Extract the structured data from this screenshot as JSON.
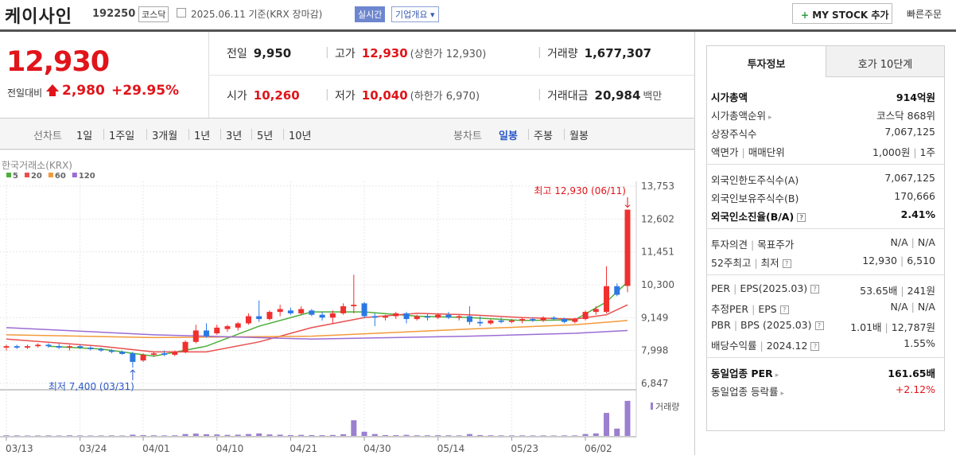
{
  "header": {
    "name": "케이사인",
    "code": "192250",
    "market": "코스닥",
    "date": "2025.06.11 기준(KRX 장마감)",
    "realtime": "실시간",
    "overview": "기업개요",
    "mystock": "MY STOCK 추가",
    "order": "빠른주문"
  },
  "quote": {
    "price": "12,930",
    "change_label": "전일대비",
    "change": "2,980",
    "rate": "+29.95%",
    "rows": [
      [
        {
          "label": "전일",
          "value": "9,950"
        },
        {
          "label": "고가",
          "value": "12,930",
          "note": "(상한가 12,930)",
          "red": true
        },
        {
          "label": "거래량",
          "value": "1,677,307"
        }
      ],
      [
        {
          "label": "시가",
          "value": "10,260",
          "red": true
        },
        {
          "label": "저가",
          "value": "10,040",
          "note": "(하한가 6,970)",
          "red": true
        },
        {
          "label": "거래대금",
          "value": "20,984",
          "note": "백만"
        }
      ]
    ]
  },
  "periods": {
    "line_label": "선차트",
    "line": [
      "1일",
      "1주일",
      "3개월",
      "1년",
      "3년",
      "5년",
      "10년"
    ],
    "candle_label": "봉차트",
    "candle": [
      "일봉",
      "주봉",
      "월봉"
    ],
    "selected": "일봉"
  },
  "chart": {
    "type": "candlestick",
    "source": "한국거래소(KRX)",
    "up_color": "#f0302f",
    "down_color": "#2b78e4",
    "grid": true,
    "ylim": [
      6847,
      13753
    ],
    "yticks": [
      {
        "value": 6847,
        "label": "6,847"
      },
      {
        "value": 7998,
        "label": "7,998"
      },
      {
        "value": 9149,
        "label": "9,149"
      },
      {
        "value": 10300,
        "label": "10,300"
      },
      {
        "value": 11451,
        "label": "11,451"
      },
      {
        "value": 12602,
        "label": "12,602"
      },
      {
        "value": 13753,
        "label": "13,753"
      }
    ],
    "categories": [
      "03/13",
      null,
      null,
      null,
      null,
      null,
      null,
      "03/24",
      null,
      null,
      null,
      null,
      null,
      "04/01",
      null,
      null,
      null,
      null,
      null,
      null,
      "04/10",
      null,
      null,
      null,
      null,
      null,
      null,
      "04/21",
      null,
      null,
      null,
      null,
      null,
      null,
      "04/30",
      null,
      null,
      null,
      null,
      null,
      null,
      "05/14",
      null,
      null,
      null,
      null,
      null,
      null,
      "05/23",
      null,
      null,
      null,
      null,
      null,
      null,
      "06/02",
      null,
      null,
      null,
      null,
      null
    ],
    "ohlc": [
      [
        8100,
        8200,
        8000,
        8150
      ],
      [
        8150,
        8200,
        8050,
        8100
      ],
      [
        8100,
        8200,
        8050,
        8150
      ],
      [
        8150,
        8250,
        8100,
        8200
      ],
      [
        8200,
        8250,
        8100,
        8150
      ],
      [
        8150,
        8250,
        8050,
        8100
      ],
      [
        8100,
        8200,
        8000,
        8150
      ],
      [
        8150,
        8200,
        8050,
        8100
      ],
      [
        8100,
        8150,
        8000,
        8050
      ],
      [
        8050,
        8100,
        7950,
        8000
      ],
      [
        8000,
        8050,
        7900,
        7950
      ],
      [
        7950,
        8000,
        7850,
        7880
      ],
      [
        7900,
        7950,
        7400,
        7600
      ],
      [
        7650,
        7900,
        7600,
        7850
      ],
      [
        7850,
        7950,
        7780,
        7900
      ],
      [
        7900,
        8000,
        7800,
        7850
      ],
      [
        7850,
        8000,
        7800,
        7950
      ],
      [
        7950,
        8350,
        7900,
        8300
      ],
      [
        8300,
        8900,
        8250,
        8700
      ],
      [
        8700,
        8950,
        8450,
        8500
      ],
      [
        8600,
        8900,
        8550,
        8800
      ],
      [
        8750,
        8900,
        8650,
        8850
      ],
      [
        8800,
        9000,
        8700,
        8950
      ],
      [
        8950,
        9300,
        8900,
        9200
      ],
      [
        9200,
        9750,
        9000,
        9100
      ],
      [
        9100,
        9400,
        9050,
        9350
      ],
      [
        9350,
        9600,
        9200,
        9450
      ],
      [
        9400,
        9500,
        9250,
        9300
      ],
      [
        9300,
        9550,
        9250,
        9450
      ],
      [
        9400,
        9450,
        9200,
        9250
      ],
      [
        9250,
        9350,
        9050,
        9150
      ],
      [
        9150,
        9400,
        8950,
        9300
      ],
      [
        9300,
        9650,
        9250,
        9550
      ],
      [
        9550,
        10650,
        9300,
        9600
      ],
      [
        9650,
        9700,
        9150,
        9200
      ],
      [
        9200,
        9300,
        8850,
        9150
      ],
      [
        9150,
        9250,
        9050,
        9200
      ],
      [
        9200,
        9350,
        9100,
        9300
      ],
      [
        9300,
        9350,
        8950,
        9100
      ],
      [
        9100,
        9250,
        9050,
        9200
      ],
      [
        9200,
        9300,
        9050,
        9150
      ],
      [
        9150,
        9300,
        9100,
        9250
      ],
      [
        9250,
        9350,
        9100,
        9150
      ],
      [
        9150,
        9250,
        9050,
        9200
      ],
      [
        9200,
        9550,
        8900,
        9000
      ],
      [
        9000,
        9200,
        8850,
        8950
      ],
      [
        8950,
        9100,
        8900,
        9050
      ],
      [
        9050,
        9150,
        8950,
        9000
      ],
      [
        9000,
        9100,
        8950,
        9050
      ],
      [
        9050,
        9150,
        8950,
        9100
      ],
      [
        9100,
        9150,
        9000,
        9050
      ],
      [
        9050,
        9200,
        9000,
        9150
      ],
      [
        9150,
        9200,
        9050,
        9100
      ],
      [
        9100,
        9150,
        8950,
        9000
      ],
      [
        9000,
        9150,
        8950,
        9100
      ],
      [
        9100,
        9400,
        9050,
        9350
      ],
      [
        9350,
        9550,
        9250,
        9450
      ],
      [
        9350,
        10950,
        9300,
        10250
      ],
      [
        10250,
        10350,
        9900,
        9950
      ],
      [
        10260,
        12930,
        10040,
        12930
      ]
    ],
    "ma": [
      {
        "name": "5",
        "color": "#4caf3a",
        "x": [
          4,
          9,
          14,
          19,
          24,
          29,
          34,
          39,
          44,
          49,
          54,
          57,
          59
        ],
        "values": [
          8150,
          8050,
          7800,
          8150,
          8850,
          9350,
          9350,
          9200,
          9150,
          9050,
          9070,
          9700,
          10400
        ]
      },
      {
        "name": "20",
        "color": "#e8504f",
        "x": [
          0,
          9,
          14,
          19,
          24,
          29,
          34,
          39,
          44,
          49,
          54,
          57,
          59
        ],
        "values": [
          8400,
          8150,
          7950,
          7950,
          8300,
          8800,
          9150,
          9300,
          9250,
          9150,
          9100,
          9250,
          9600
        ]
      },
      {
        "name": "60",
        "color": "#f29a3a",
        "x": [
          0,
          14,
          29,
          44,
          54,
          59
        ],
        "values": [
          8550,
          8450,
          8500,
          8750,
          8900,
          9050
        ]
      },
      {
        "name": "120",
        "color": "#9b6cd4",
        "x": [
          0,
          14,
          29,
          44,
          54,
          59
        ],
        "values": [
          8800,
          8550,
          8400,
          8500,
          8600,
          8700
        ]
      }
    ],
    "volume": {
      "label": "거래량",
      "color": "#9b7fd0",
      "ylim": [
        0,
        1750000
      ],
      "values": [
        30000,
        25000,
        20000,
        22000,
        25000,
        20000,
        30000,
        25000,
        20000,
        22000,
        25000,
        20000,
        60000,
        40000,
        30000,
        25000,
        30000,
        90000,
        110000,
        80000,
        70000,
        50000,
        60000,
        90000,
        120000,
        70000,
        60000,
        40000,
        50000,
        40000,
        35000,
        45000,
        80000,
        750000,
        200000,
        90000,
        40000,
        35000,
        50000,
        30000,
        30000,
        35000,
        30000,
        25000,
        90000,
        40000,
        30000,
        25000,
        25000,
        25000,
        22000,
        25000,
        20000,
        25000,
        25000,
        90000,
        120000,
        1100000,
        350000,
        1677307
      ]
    },
    "annotations": [
      {
        "text": "최고 12,930 (06/11)"
      },
      {
        "text": "최저 7,400 (03/31)"
      }
    ]
  },
  "side": {
    "tabs": [
      "투자정보",
      "호가 10단계"
    ],
    "groups": [
      [
        {
          "label": [
            "시가총액"
          ],
          "value": [
            "914억원"
          ],
          "bold": true
        },
        {
          "label": [
            "시가총액순위"
          ],
          "value": [
            "코스닥 868위"
          ],
          "arrow": true
        },
        {
          "label": [
            "상장주식수"
          ],
          "value": [
            "7,067,125"
          ]
        },
        {
          "label": [
            "액면가",
            "매매단위"
          ],
          "value": [
            "1,000원",
            "1주"
          ]
        }
      ],
      [
        {
          "label": [
            "외국인한도주식수(A)"
          ],
          "value": [
            "7,067,125"
          ]
        },
        {
          "label": [
            "외국인보유주식수(B)"
          ],
          "value": [
            "170,666"
          ]
        },
        {
          "label": [
            "외국인소진율(B/A)"
          ],
          "value": [
            "2.41%"
          ],
          "bold": true,
          "help": true
        }
      ],
      [
        {
          "label": [
            "투자의견",
            "목표주가"
          ],
          "value": [
            "N/A",
            "N/A"
          ]
        },
        {
          "label": [
            "52주최고",
            "최저"
          ],
          "value": [
            "12,930",
            "6,510"
          ],
          "help": true
        }
      ],
      [
        {
          "label": [
            "PER",
            "EPS(2025.03)"
          ],
          "value": [
            "53.65배",
            "241원"
          ],
          "help": true
        },
        {
          "label": [
            "추정PER",
            "EPS"
          ],
          "value": [
            "N/A",
            "N/A"
          ],
          "help": true
        },
        {
          "label": [
            "PBR",
            "BPS (2025.03)"
          ],
          "value": [
            "1.01배",
            "12,787원"
          ],
          "help": true
        },
        {
          "label": [
            "배당수익률",
            "2024.12"
          ],
          "value": [
            "1.55%"
          ],
          "help": true
        }
      ],
      [
        {
          "label": [
            "동일업종 PER"
          ],
          "value": [
            "161.65배"
          ],
          "bold": true,
          "arrow": true
        },
        {
          "label": [
            "동일업종 등락률"
          ],
          "value": [
            "+2.12%"
          ],
          "arrow": true,
          "red": true
        }
      ]
    ]
  }
}
